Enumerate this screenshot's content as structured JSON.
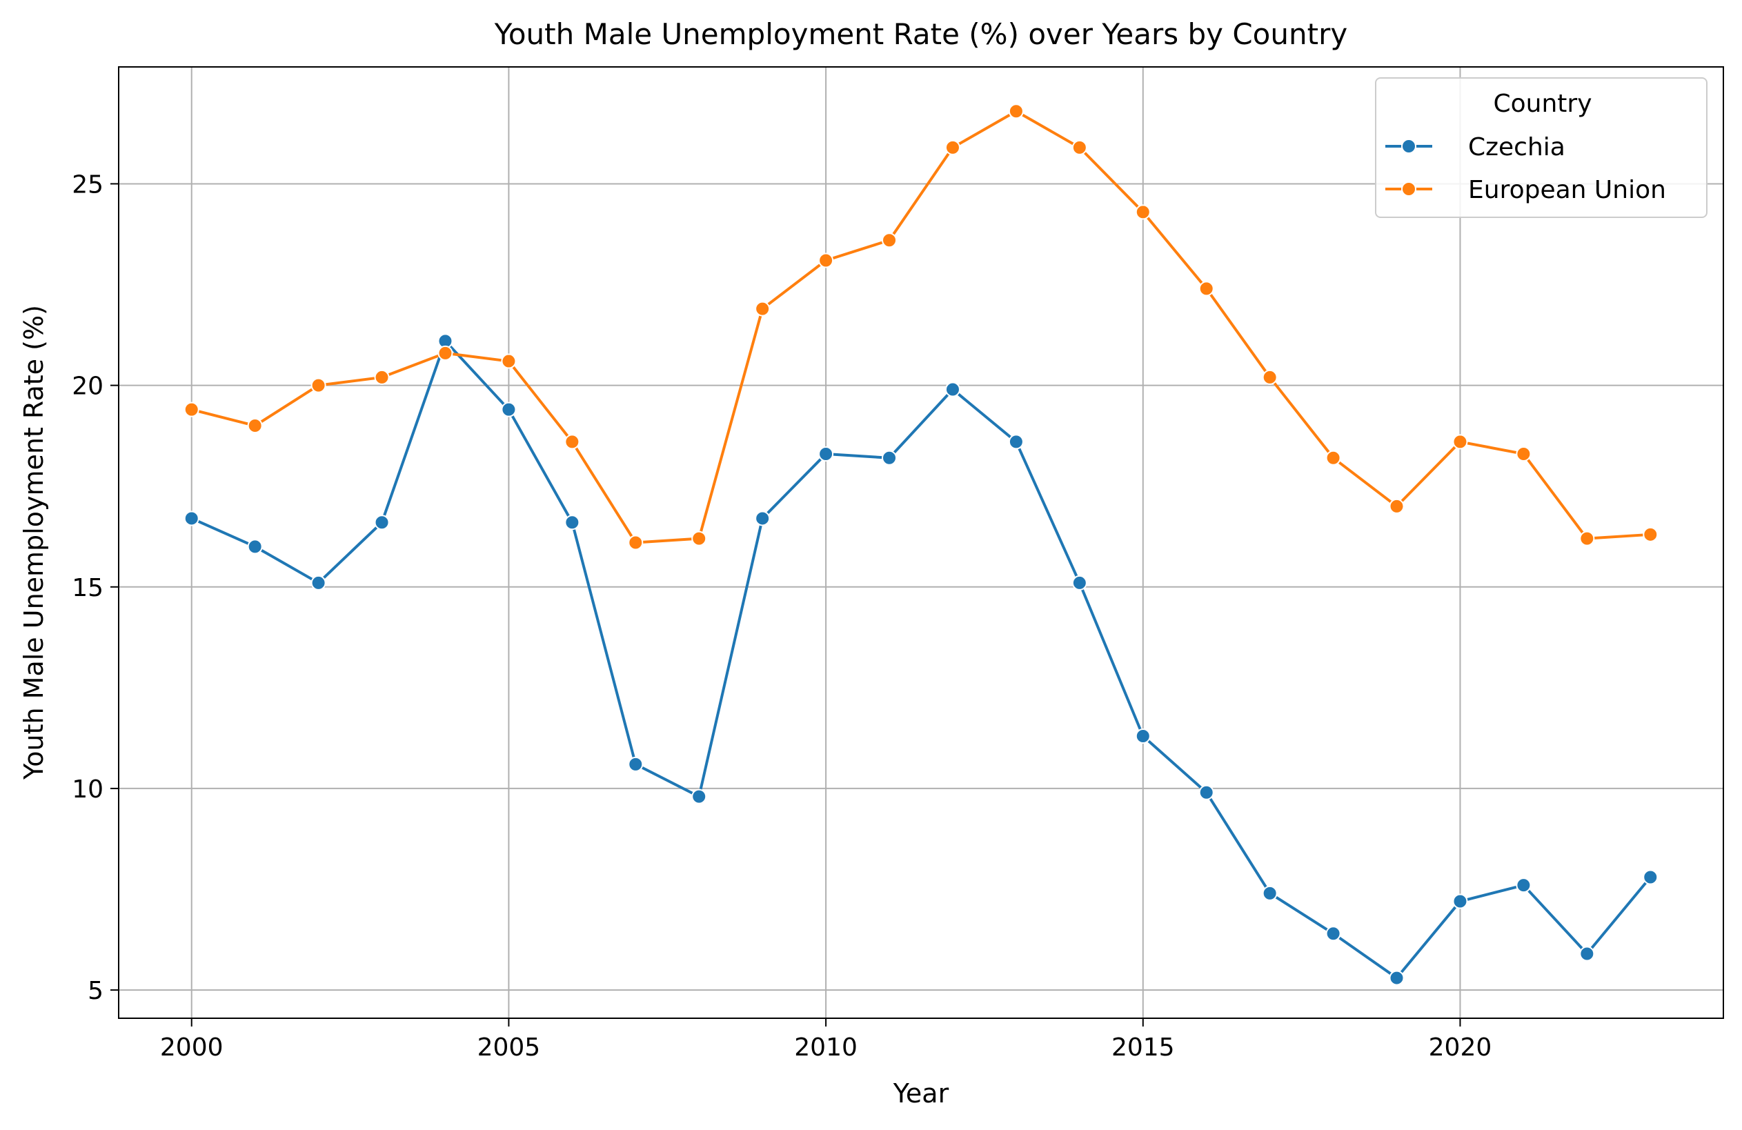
{
  "chart_data": {
    "type": "line",
    "title": "Youth Male Unemployment Rate (%) over Years by Country",
    "xlabel": "Year",
    "ylabel": "Youth Male Unemployment Rate (%)",
    "xlim": [
      1998.85,
      2024.15
    ],
    "ylim": [
      4.3,
      27.9
    ],
    "xticks": [
      2000,
      2005,
      2010,
      2015,
      2020
    ],
    "yticks": [
      5,
      10,
      15,
      20,
      25
    ],
    "grid": true,
    "legend": {
      "title": "Country",
      "placement": "top-right"
    },
    "x": [
      2000,
      2001,
      2002,
      2003,
      2004,
      2005,
      2006,
      2007,
      2008,
      2009,
      2010,
      2011,
      2012,
      2013,
      2014,
      2015,
      2016,
      2017,
      2018,
      2019,
      2020,
      2021,
      2022,
      2023
    ],
    "series": [
      {
        "name": "Czechia",
        "color": "#1f77b4",
        "values": [
          16.7,
          16.0,
          15.1,
          16.6,
          21.1,
          19.4,
          16.6,
          10.6,
          9.8,
          16.7,
          18.3,
          18.2,
          19.9,
          18.6,
          15.1,
          11.3,
          9.9,
          7.4,
          6.4,
          5.3,
          7.2,
          7.6,
          5.9,
          7.8
        ]
      },
      {
        "name": "European Union",
        "color": "#ff7f0e",
        "values": [
          19.4,
          19.0,
          20.0,
          20.2,
          20.8,
          20.6,
          18.6,
          16.1,
          16.2,
          21.9,
          23.1,
          23.6,
          25.9,
          26.8,
          25.9,
          24.3,
          22.4,
          20.2,
          18.2,
          17.0,
          18.6,
          18.3,
          16.2,
          16.3
        ]
      }
    ]
  }
}
